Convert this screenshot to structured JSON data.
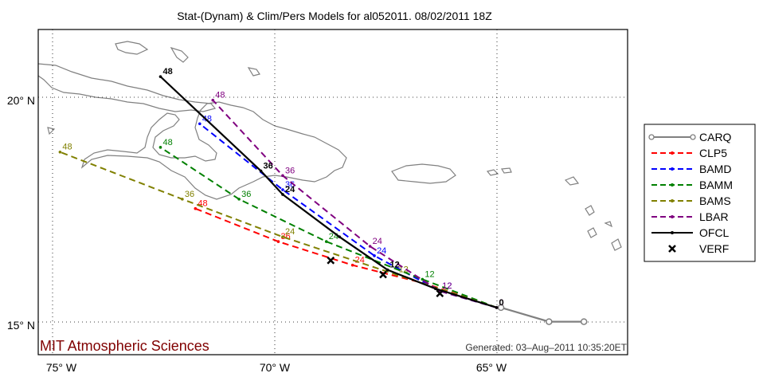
{
  "chart_data": {
    "type": "line",
    "title": "Stat-(Dynam) & Clim/Pers Models for al052011. 08/02/2011 18Z",
    "xlim": [
      -75.5,
      -62.0
    ],
    "ylim": [
      14.6,
      21.5
    ],
    "x_ticks": [
      {
        "value": -75,
        "label": "75° W"
      },
      {
        "value": -70,
        "label": "70° W"
      },
      {
        "value": -65,
        "label": "65° W"
      }
    ],
    "y_ticks": [
      {
        "value": 20,
        "label": "20° N"
      },
      {
        "value": 15,
        "label": "15° N"
      }
    ],
    "grid": true,
    "legend_position": "right",
    "series": [
      {
        "name": "CARQ",
        "color": "#808080",
        "style": "solid",
        "marker": "circle",
        "points": [
          [
            -64.9,
            15.6
          ],
          [
            -63.8,
            15.3
          ],
          [
            -63.0,
            15.3
          ]
        ],
        "labels": []
      },
      {
        "name": "CLP5",
        "color": "#ff0000",
        "style": "dashed",
        "marker": "dot",
        "points": [
          [
            -65.0,
            15.6
          ],
          [
            -66.6,
            16.1
          ],
          [
            -68.3,
            16.5
          ],
          [
            -70.0,
            17.0
          ],
          [
            -71.9,
            17.7
          ]
        ],
        "labels": [
          {
            "i": 2,
            "text": "24"
          },
          {
            "i": 3,
            "text": "36"
          },
          {
            "i": 4,
            "text": "48"
          }
        ]
      },
      {
        "name": "BAMD",
        "color": "#0000ff",
        "style": "dashed",
        "marker": "dot",
        "points": [
          [
            -65.0,
            15.6
          ],
          [
            -66.3,
            15.95
          ],
          [
            -67.8,
            16.7
          ],
          [
            -69.9,
            18.1
          ],
          [
            -71.8,
            19.5
          ]
        ],
        "labels": [
          {
            "i": 1,
            "text": "12"
          },
          {
            "i": 2,
            "text": "24"
          },
          {
            "i": 3,
            "text": "36"
          },
          {
            "i": 4,
            "text": "48"
          }
        ]
      },
      {
        "name": "BAMM",
        "color": "#008000",
        "style": "dashed",
        "marker": "dot",
        "points": [
          [
            -65.0,
            15.6
          ],
          [
            -66.7,
            16.2
          ],
          [
            -68.9,
            17.0
          ],
          [
            -70.9,
            17.9
          ],
          [
            -72.7,
            19.0
          ]
        ],
        "labels": [
          {
            "i": 1,
            "text": "12"
          },
          {
            "i": 2,
            "text": "24"
          },
          {
            "i": 3,
            "text": "36"
          },
          {
            "i": 4,
            "text": "48"
          }
        ]
      },
      {
        "name": "BAMS",
        "color": "#808000",
        "style": "dashed",
        "marker": "dot",
        "points": [
          [
            -65.0,
            15.6
          ],
          [
            -67.3,
            16.3
          ],
          [
            -69.9,
            17.1
          ],
          [
            -72.2,
            17.9
          ],
          [
            -75.0,
            18.9
          ]
        ],
        "labels": [
          {
            "i": 1,
            "text": "12"
          },
          {
            "i": 2,
            "text": "24"
          },
          {
            "i": 3,
            "text": "36"
          },
          {
            "i": 4,
            "text": "48"
          }
        ]
      },
      {
        "name": "LBAR",
        "color": "#800080",
        "style": "dashed",
        "marker": "dot",
        "points": [
          [
            -65.0,
            15.6
          ],
          [
            -66.3,
            15.95
          ],
          [
            -67.9,
            16.9
          ],
          [
            -69.9,
            18.4
          ],
          [
            -71.5,
            20.0
          ]
        ],
        "labels": [
          {
            "i": 0,
            "text": "0"
          },
          {
            "i": 1,
            "text": "12"
          },
          {
            "i": 2,
            "text": "24"
          },
          {
            "i": 3,
            "text": "36"
          },
          {
            "i": 4,
            "text": "48"
          }
        ]
      },
      {
        "name": "OFCL",
        "color": "#000000",
        "style": "solid",
        "marker": "dot",
        "points": [
          [
            -65.0,
            15.6
          ],
          [
            -66.4,
            16.0
          ],
          [
            -67.5,
            16.4
          ],
          [
            -68.6,
            17.1
          ],
          [
            -69.9,
            18.0
          ],
          [
            -70.4,
            18.5
          ],
          [
            -72.7,
            20.5
          ]
        ],
        "labels": [
          {
            "i": 0,
            "text": "0"
          },
          {
            "i": 2,
            "text": "12"
          },
          {
            "i": 4,
            "text": "24"
          },
          {
            "i": 5,
            "text": "36"
          },
          {
            "i": 6,
            "text": "48"
          }
        ]
      },
      {
        "name": "VERF",
        "color": "#000000",
        "style": "none",
        "marker": "x",
        "points": [
          [
            -66.3,
            15.9
          ],
          [
            -67.6,
            16.3
          ],
          [
            -68.8,
            16.6
          ]
        ],
        "labels": []
      }
    ]
  },
  "footer": {
    "credit": "MIT Atmospheric Sciences",
    "credit_color": "#800000",
    "generated": "Generated: 03–Aug–2011 10:35:20ET"
  }
}
